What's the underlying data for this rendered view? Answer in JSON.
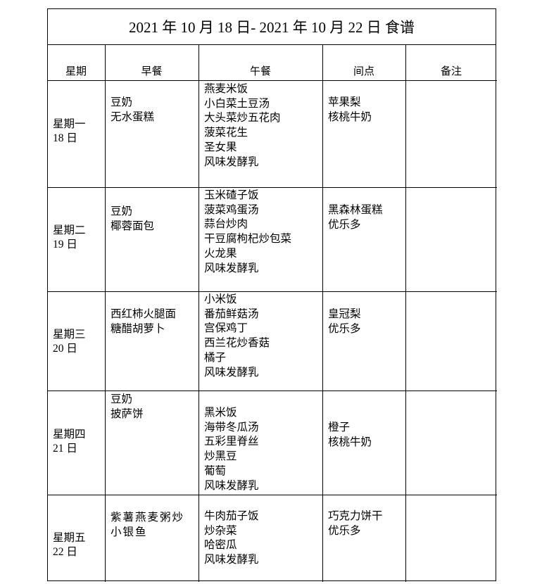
{
  "title": "2021 年 10 月 18 日- 2021 年 10 月 22 日  食谱",
  "headers": [
    "星期",
    "早餐",
    "午餐",
    "间点",
    "备注"
  ],
  "rows": [
    {
      "day": "星期一",
      "date": "18 日",
      "breakfast": [
        "豆奶",
        "无水蛋糕"
      ],
      "lunch": [
        "燕麦米饭",
        "小白菜土豆汤",
        "大头菜炒五花肉",
        "菠菜花生",
        "圣女果",
        "风味发酵乳"
      ],
      "snack": [
        "苹果梨",
        "核桃牛奶"
      ],
      "note": ""
    },
    {
      "day": "星期二",
      "date": "19 日",
      "breakfast": [
        "豆奶",
        "椰蓉面包"
      ],
      "lunch": [
        "玉米碴子饭",
        "菠菜鸡蛋汤",
        "蒜台炒肉",
        "干豆腐枸杞炒包菜",
        "火龙果",
        "风味发酵乳"
      ],
      "snack": [
        "黑森林蛋糕",
        "优乐多"
      ],
      "note": ""
    },
    {
      "day": "星期三",
      "date": "20 日",
      "breakfast": [
        "西红柿火腿面",
        "糖醋胡萝卜"
      ],
      "lunch": [
        "小米饭",
        "番茄鲜菇汤",
        "宫保鸡丁",
        "西兰花炒香菇",
        "橘子",
        "风味发酵乳"
      ],
      "snack": [
        "皇冠梨",
        "优乐多"
      ],
      "note": ""
    },
    {
      "day": "星期四",
      "date": "21 日",
      "breakfast": [
        "豆奶",
        "披萨饼"
      ],
      "lunch": [
        "黑米饭",
        "海带冬瓜汤",
        "五彩里脊丝",
        "炒黑豆",
        "葡萄",
        "风味发酵乳"
      ],
      "snack": [
        "橙子",
        "核桃牛奶"
      ],
      "note": ""
    },
    {
      "day": "星期五",
      "date": "22 日",
      "breakfast": [
        "紫薯燕麦粥炒小银鱼"
      ],
      "lunch": [
        "牛肉茄子饭",
        "炒杂菜",
        "哈密瓜",
        "风味发酵乳"
      ],
      "snack": [
        "巧克力饼干",
        "优乐多"
      ],
      "note": ""
    }
  ]
}
